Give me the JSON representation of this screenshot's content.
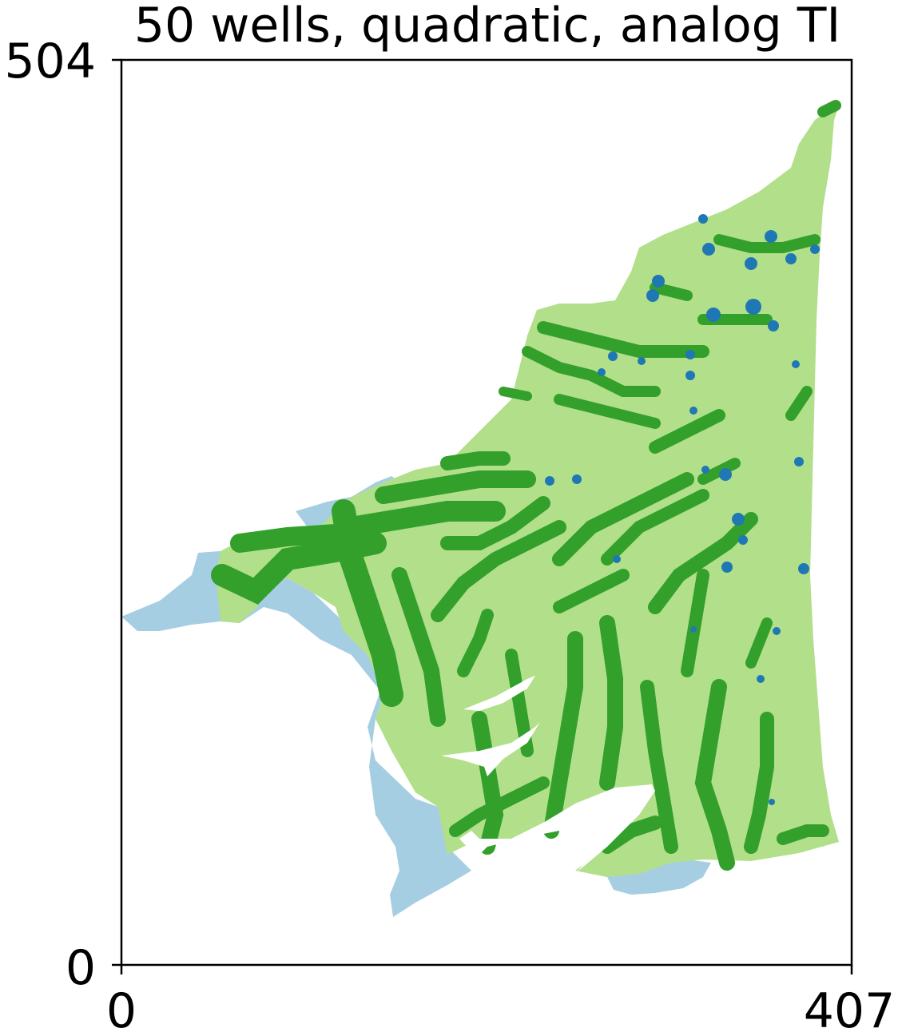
{
  "chart_data": {
    "type": "heatmap",
    "title": "50 wells, quadratic, analog TI",
    "xlabel": "",
    "ylabel": "",
    "xlim": [
      0,
      407
    ],
    "ylim": [
      0,
      504
    ],
    "x_ticks": [
      "0",
      "407"
    ],
    "y_ticks": [
      "0",
      "504"
    ],
    "grid": false,
    "legend": "none",
    "colors": {
      "light_green": "#b2df8a",
      "dark_green": "#33a02c",
      "light_blue": "#a6cee3",
      "dark_blue": "#1f78b4",
      "background": "#ffffff"
    }
  }
}
